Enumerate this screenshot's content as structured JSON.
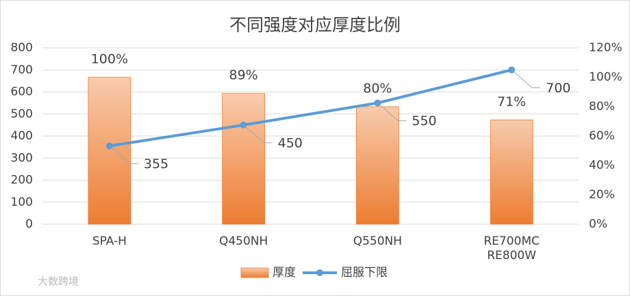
{
  "chart_data": {
    "type": "bar",
    "title": "不同强度对应厚度比例",
    "categories": [
      "SPA-H",
      "Q450NH",
      "Q550NH",
      "RE700MC\nRE800W"
    ],
    "series": [
      {
        "name": "厚度",
        "type": "bar",
        "axis": "y2",
        "color": "#ed7d31",
        "values": [
          100,
          89,
          80,
          71
        ],
        "value_labels": [
          "100%",
          "89%",
          "80%",
          "71%"
        ]
      },
      {
        "name": "屈服下限",
        "type": "line",
        "color": "#5b9bd5",
        "values": [
          355,
          450,
          550,
          700
        ]
      }
    ],
    "ylim": [
      0,
      800
    ],
    "yticks": [
      0,
      100,
      200,
      300,
      400,
      500,
      600,
      700,
      800
    ],
    "y2lim": [
      0,
      120
    ],
    "y2ticks": [
      {
        "value": 0,
        "label": "0%"
      },
      {
        "value": 20,
        "label": "20%"
      },
      {
        "value": 40,
        "label": "40%"
      },
      {
        "value": 60,
        "label": "60%"
      },
      {
        "value": 80,
        "label": "80%"
      },
      {
        "value": 100,
        "label": "100%"
      },
      {
        "value": 120,
        "label": "120%"
      }
    ],
    "grid": true,
    "legend": "bottom",
    "watermark": "大数跨境"
  }
}
